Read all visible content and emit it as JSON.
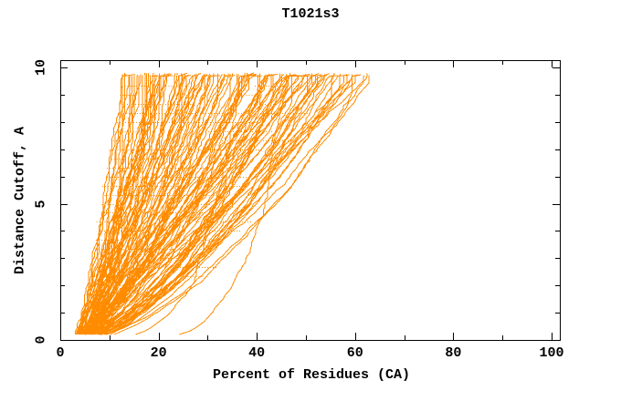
{
  "window": {
    "background": "#ffffff"
  },
  "chart_data": {
    "type": "line",
    "title": "T1021s3",
    "xlabel": "Percent of Residues (CA)",
    "ylabel": "Distance Cutoff, A",
    "xlim": [
      0,
      101.7
    ],
    "ylim": [
      0,
      10.27
    ],
    "grid": false,
    "legend": false,
    "frame_color": "#000000",
    "series_color": "#FF8C00",
    "x_ticks": {
      "major": [
        0,
        20,
        40,
        60,
        80,
        100
      ],
      "minor": [
        10,
        30,
        50,
        70,
        90
      ]
    },
    "y_ticks": {
      "major": [
        0,
        5,
        10
      ],
      "minor": [
        1,
        2,
        3,
        4,
        6,
        7,
        8,
        9
      ]
    },
    "curves": {
      "description": "Bundle of per-model accuracy curves: percent of CA residues (x) under each distance cutoff in Angstroms (y). All curves rise from ~3-5% at cutoff 0.2 A; each curve's percent at the top cutoff (9.75 A) is listed in end_percents.",
      "count": 124,
      "cutoff_range": [
        0.2,
        9.8
      ],
      "start_percent_range": [
        2.6,
        5.4
      ],
      "end_percents": [
        12.6,
        13.1,
        13.5,
        13.9,
        14.2,
        14.6,
        15.0,
        15.3,
        15.7,
        16.1,
        16.4,
        16.8,
        17.2,
        17.5,
        17.9,
        18.2,
        18.6,
        19.0,
        19.3,
        19.6,
        19.9,
        20.2,
        20.5,
        20.9,
        21.3,
        21.8,
        22.2,
        22.6,
        23.0,
        23.4,
        23.8,
        24.2,
        24.6,
        25.0,
        25.4,
        25.8,
        26.2,
        26.6,
        27.0,
        27.4,
        27.8,
        28.2,
        28.6,
        29.0,
        29.3,
        29.6,
        29.8,
        30.1,
        30.4,
        30.8,
        31.2,
        31.6,
        32.0,
        32.5,
        33.0,
        33.4,
        33.8,
        34.2,
        34.6,
        35.0,
        35.5,
        36.0,
        36.4,
        36.8,
        37.2,
        37.6,
        38.0,
        38.5,
        39.0,
        39.4,
        39.8,
        40.2,
        40.6,
        41.0,
        41.4,
        41.8,
        42.2,
        42.6,
        43.0,
        43.4,
        43.8,
        44.2,
        44.6,
        45.0,
        45.5,
        46.0,
        46.4,
        46.8,
        47.2,
        47.6,
        48.0,
        48.4,
        48.8,
        49.2,
        49.6,
        50.0,
        50.4,
        50.8,
        51.2,
        51.6,
        52.0,
        52.3,
        52.6,
        52.9,
        53.3,
        53.8,
        54.3,
        54.8,
        55.3,
        55.8,
        56.4,
        57.0,
        57.6,
        58.2,
        58.8,
        59.4,
        60.0,
        60.6,
        61.2,
        61.8,
        62.4,
        62.9
      ],
      "outliers": [
        {
          "end_percent": 46.0,
          "shape": 0.18
        },
        {
          "end_percent": 40.0,
          "shape": 0.28
        }
      ],
      "seed": 20210703
    },
    "texture": {
      "row_spacing_A": 0.3333,
      "dash": "1,2"
    }
  }
}
